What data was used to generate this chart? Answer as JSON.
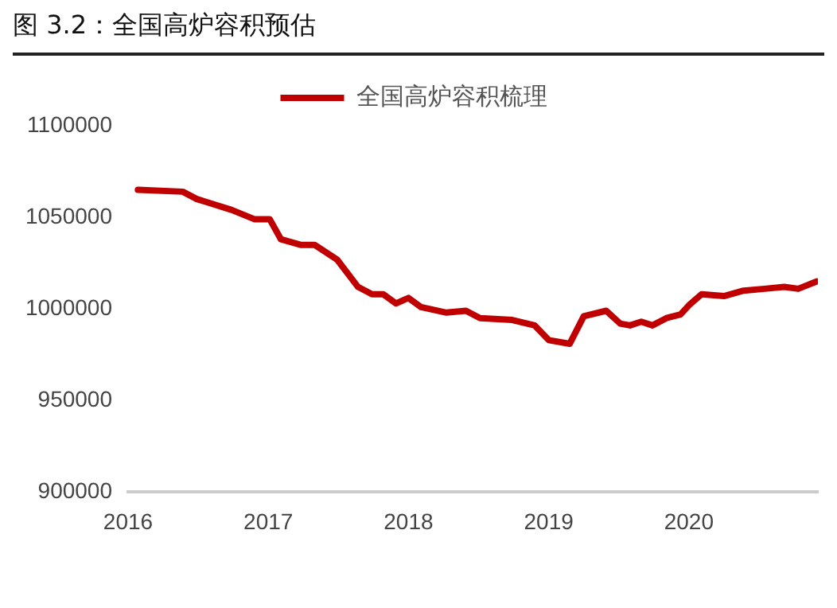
{
  "chart_data": {
    "type": "line",
    "title": "图 3.2：全国高炉容积预估",
    "x": [
      2016.07,
      2016.39,
      2016.49,
      2016.74,
      2016.9,
      2017.01,
      2017.09,
      2017.23,
      2017.33,
      2017.49,
      2017.64,
      2017.74,
      2017.82,
      2017.91,
      2018.0,
      2018.09,
      2018.27,
      2018.41,
      2018.51,
      2018.74,
      2018.9,
      2019.0,
      2019.15,
      2019.25,
      2019.41,
      2019.51,
      2019.58,
      2019.66,
      2019.74,
      2019.84,
      2019.94,
      2020.0,
      2020.09,
      2020.25,
      2020.39,
      2020.54,
      2020.68,
      2020.78,
      2020.91
    ],
    "series": [
      {
        "name": "全国高炉容积梳理",
        "color": "#c00000",
        "values": [
          1065000,
          1064000,
          1060000,
          1054000,
          1049000,
          1049000,
          1038000,
          1035000,
          1035000,
          1027000,
          1012000,
          1008000,
          1008000,
          1003000,
          1006000,
          1001000,
          998000,
          999000,
          995000,
          994000,
          991000,
          983000,
          981000,
          996000,
          999000,
          992000,
          991000,
          993000,
          991000,
          995000,
          997000,
          1002000,
          1008000,
          1007000,
          1010000,
          1011000,
          1012000,
          1011000,
          1015000
        ]
      }
    ],
    "xlim": [
      2016,
      2020.92
    ],
    "xticks": [
      2016,
      2017,
      2018,
      2019,
      2020
    ],
    "ylim": [
      900000,
      1100000
    ],
    "yticks": [
      900000,
      950000,
      1000000,
      1050000,
      1100000
    ],
    "grid": false,
    "legend": "top",
    "marker": "none",
    "line_style": "solid"
  }
}
